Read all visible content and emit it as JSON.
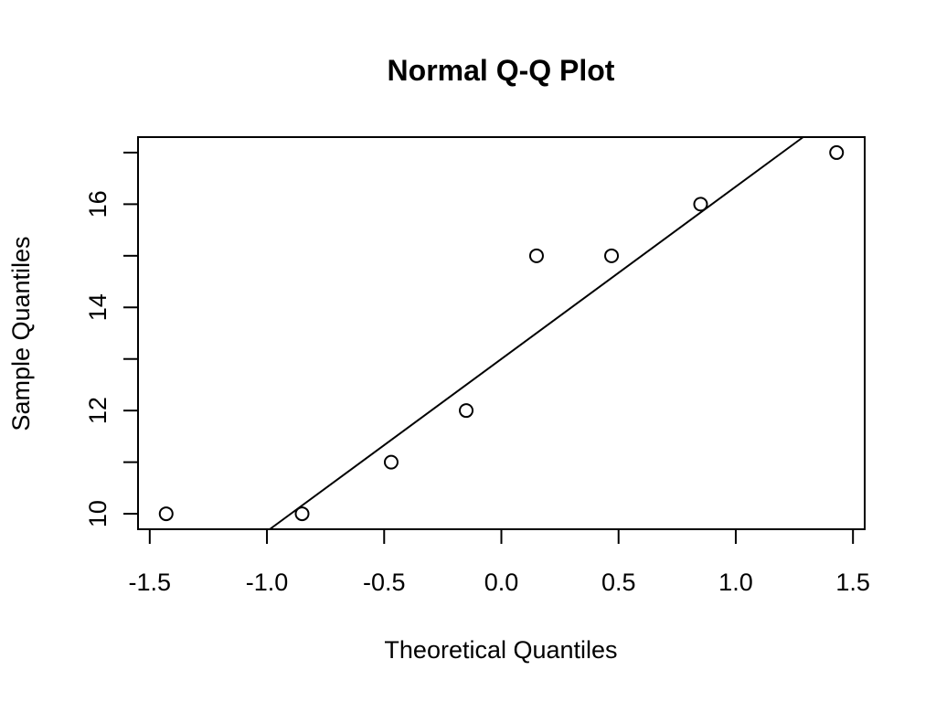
{
  "chart_data": {
    "type": "scatter",
    "title": "Normal Q-Q Plot",
    "xlabel": "Theoretical Quantiles",
    "ylabel": "Sample Quantiles",
    "xlim": [
      -1.55,
      1.55
    ],
    "ylim": [
      9.7,
      17.3
    ],
    "x_ticks": [
      -1.5,
      -1.0,
      -0.5,
      0.0,
      0.5,
      1.0,
      1.5
    ],
    "x_tick_labels": [
      "-1.5",
      "-1.0",
      "-0.5",
      "0.0",
      "0.5",
      "1.0",
      "1.5"
    ],
    "y_ticks": [
      10,
      11,
      12,
      13,
      14,
      15,
      16,
      17
    ],
    "y_tick_labels": [
      "10",
      "",
      "12",
      "",
      "14",
      "",
      "16",
      ""
    ],
    "points": {
      "x": [
        -1.43,
        -0.85,
        -0.47,
        -0.15,
        0.15,
        0.47,
        0.85,
        1.43
      ],
      "y": [
        10,
        10,
        11,
        12,
        15,
        15,
        16,
        17
      ]
    },
    "reference_line": {
      "intercept": 13.0,
      "slope": 3.34
    },
    "grid": false,
    "legend": "none"
  }
}
